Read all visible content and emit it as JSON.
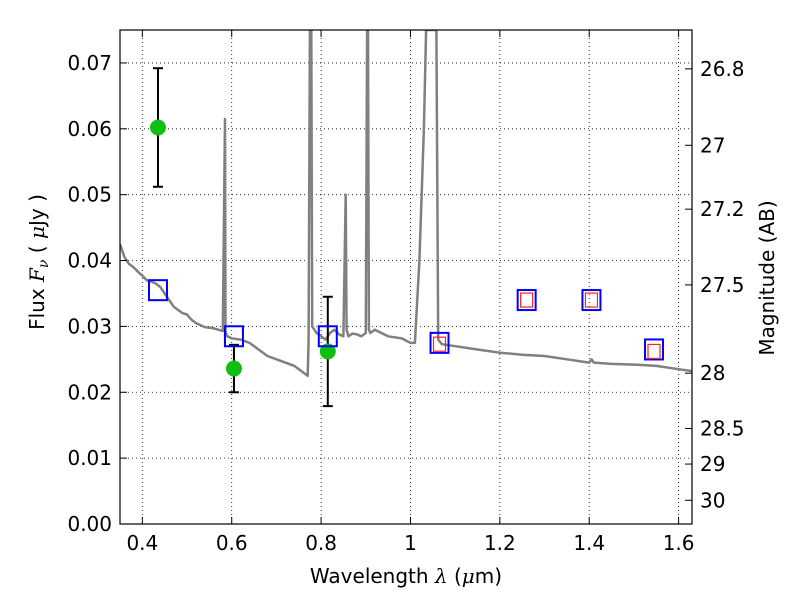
{
  "chart_data": {
    "type": "scatter",
    "xlabel": "Wavelength  λ (μm)",
    "xlabel_parts": {
      "prefix": "Wavelength  ",
      "lambda": "λ",
      "open": " (",
      "mu": "μ",
      "close": "m)"
    },
    "ylabel": "Flux  Fν  ( μJy )",
    "ylabel_parts": {
      "prefix": "Flux  ",
      "F": "F",
      "nu": "ν",
      "open": "  ( ",
      "mu": "μ",
      "close": "Jy )"
    },
    "y2label": "Magnitude (AB)",
    "xlim": [
      0.35,
      1.63
    ],
    "ylim": [
      0.0,
      0.075
    ],
    "grid": true,
    "x_ticks": [
      "0.4",
      "0.6",
      "0.8",
      "1",
      "1.2",
      "1.4",
      "1.6"
    ],
    "x_tick_values": [
      0.4,
      0.6,
      0.8,
      1.0,
      1.2,
      1.4,
      1.6
    ],
    "y_ticks": [
      "0.00",
      "0.01",
      "0.02",
      "0.03",
      "0.04",
      "0.05",
      "0.06",
      "0.07"
    ],
    "y_tick_values": [
      0.0,
      0.01,
      0.02,
      0.03,
      0.04,
      0.05,
      0.06,
      0.07
    ],
    "y2_ticks": [
      {
        "label": "26.8",
        "flux": 0.0691
      },
      {
        "label": "27",
        "flux": 0.0575
      },
      {
        "label": "27.2",
        "flux": 0.0478
      },
      {
        "label": "27.5",
        "flux": 0.0363
      },
      {
        "label": "28",
        "flux": 0.0229
      },
      {
        "label": "28.5",
        "flux": 0.0145
      },
      {
        "label": "29",
        "flux": 0.0091
      },
      {
        "label": "30",
        "flux": 0.0036
      }
    ],
    "series": [
      {
        "kind": "model-spectrum",
        "color": "#808080",
        "x": [
          0.35,
          0.36,
          0.37,
          0.38,
          0.39,
          0.4,
          0.41,
          0.42,
          0.43,
          0.44,
          0.45,
          0.46,
          0.47,
          0.48,
          0.49,
          0.5,
          0.51,
          0.52,
          0.53,
          0.54,
          0.55,
          0.56,
          0.57,
          0.58,
          0.585,
          0.586,
          0.587,
          0.588,
          0.59,
          0.6,
          0.62,
          0.64,
          0.66,
          0.68,
          0.7,
          0.72,
          0.74,
          0.76,
          0.77,
          0.772,
          0.775,
          0.778,
          0.78,
          0.79,
          0.8,
          0.81,
          0.82,
          0.83,
          0.84,
          0.85,
          0.855,
          0.857,
          0.859,
          0.861,
          0.87,
          0.88,
          0.89,
          0.9,
          0.903,
          0.905,
          0.907,
          0.91,
          0.92,
          0.95,
          0.98,
          1.0,
          1.01,
          1.02,
          1.03,
          1.035,
          1.04,
          1.05,
          1.055,
          1.058,
          1.062,
          1.07,
          1.1,
          1.15,
          1.2,
          1.25,
          1.3,
          1.35,
          1.4,
          1.405,
          1.41,
          1.45,
          1.5,
          1.55,
          1.6,
          1.63
        ],
        "y": [
          0.0425,
          0.0405,
          0.0395,
          0.039,
          0.0383,
          0.0377,
          0.037,
          0.0368,
          0.0365,
          0.036,
          0.035,
          0.034,
          0.033,
          0.0325,
          0.032,
          0.0318,
          0.031,
          0.0305,
          0.0302,
          0.0299,
          0.0298,
          0.0297,
          0.0295,
          0.0293,
          0.0615,
          0.0293,
          0.029,
          0.0288,
          0.0285,
          0.0282,
          0.028,
          0.0275,
          0.0265,
          0.0255,
          0.025,
          0.0245,
          0.024,
          0.023,
          0.0225,
          0.028,
          0.075,
          0.075,
          0.03,
          0.029,
          0.0285,
          0.028,
          0.029,
          0.0295,
          0.0288,
          0.0285,
          0.05,
          0.0295,
          0.029,
          0.0285,
          0.0289,
          0.0288,
          0.0285,
          0.029,
          0.075,
          0.075,
          0.0295,
          0.029,
          0.0295,
          0.0285,
          0.0282,
          0.0275,
          0.0275,
          0.04,
          0.06,
          0.075,
          0.075,
          0.075,
          0.075,
          0.075,
          0.028,
          0.0273,
          0.027,
          0.0265,
          0.026,
          0.0257,
          0.0255,
          0.025,
          0.0245,
          0.025,
          0.0245,
          0.0243,
          0.0242,
          0.024,
          0.0235,
          0.0232
        ]
      },
      {
        "kind": "observed",
        "color": "#10c010",
        "x": [
          0.435,
          0.605,
          0.815
        ],
        "y": [
          0.0602,
          0.0236,
          0.0262
        ],
        "yerr": [
          0.009,
          0.0036,
          0.0083
        ]
      },
      {
        "kind": "model-photometry",
        "color": "#0000ff",
        "x": [
          0.435,
          0.605,
          0.815,
          1.065,
          1.26,
          1.405,
          1.545
        ],
        "y": [
          0.0355,
          0.0285,
          0.0285,
          0.0275,
          0.034,
          0.034,
          0.0265
        ]
      },
      {
        "kind": "model-photometry-inner",
        "color": "#ff2020",
        "x": [
          1.065,
          1.26,
          1.405,
          1.545
        ],
        "y": [
          0.0273,
          0.034,
          0.034,
          0.0262
        ]
      }
    ]
  }
}
